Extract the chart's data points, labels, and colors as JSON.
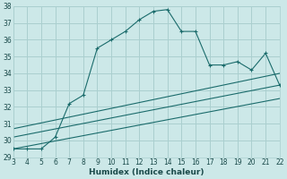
{
  "xlabel": "Humidex (Indice chaleur)",
  "ylabel": "",
  "xlim": [
    3,
    22
  ],
  "ylim": [
    29,
    38
  ],
  "xticks": [
    3,
    4,
    5,
    6,
    7,
    8,
    9,
    10,
    11,
    12,
    13,
    14,
    15,
    16,
    17,
    18,
    19,
    20,
    21,
    22
  ],
  "yticks": [
    29,
    30,
    31,
    32,
    33,
    34,
    35,
    36,
    37,
    38
  ],
  "bg_color": "#cce8e8",
  "grid_color": "#aacfcf",
  "line_color": "#1a6b6b",
  "main_x": [
    3,
    4,
    5,
    6,
    7,
    8,
    9,
    10,
    11,
    12,
    13,
    14,
    15,
    16,
    17,
    18,
    19,
    20,
    21,
    22
  ],
  "main_y": [
    29.5,
    29.5,
    29.5,
    30.2,
    32.2,
    32.7,
    35.5,
    36.0,
    36.5,
    37.2,
    37.7,
    37.8,
    36.5,
    36.5,
    34.5,
    34.5,
    34.7,
    34.2,
    35.2,
    33.3
  ],
  "line1_x": [
    3,
    22
  ],
  "line1_y": [
    30.7,
    34.0
  ],
  "line2_x": [
    3,
    22
  ],
  "line2_y": [
    30.2,
    33.3
  ],
  "line3_x": [
    3,
    22
  ],
  "line3_y": [
    29.5,
    32.5
  ]
}
